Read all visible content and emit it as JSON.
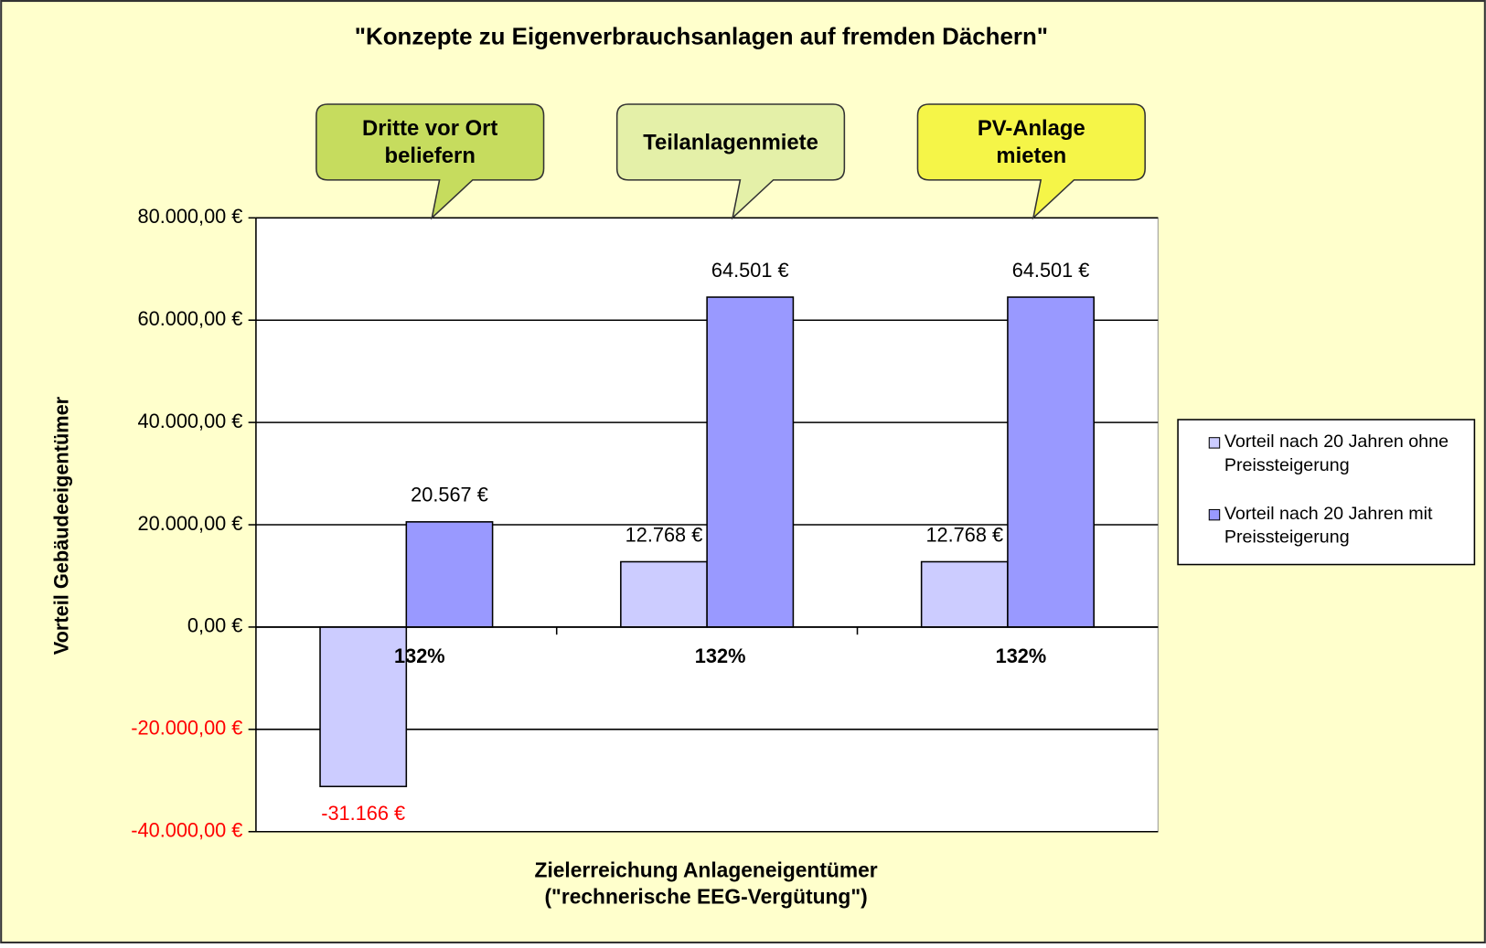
{
  "chart_data": {
    "type": "bar",
    "title": "\"Konzepte zu Eigenverbrauchsanlagen auf fremden Dächern\"",
    "y_label": "Vorteil Gebäudeeigentümer",
    "x_label": [
      "Zielerreichung Anlageneigentümer",
      "(\"rechnerische EEG-Vergütung\")"
    ],
    "categories": [
      "132%",
      "132%",
      "132%"
    ],
    "series": [
      {
        "name": "Vorteil nach 20 Jahren ohne Preissteigerung",
        "color": "#ccccff",
        "values": [
          -31166,
          12768,
          12768
        ],
        "value_labels": [
          "-31.166 €",
          "12.768 €",
          "12.768 €"
        ]
      },
      {
        "name": "Vorteil nach 20 Jahren mit Preissteigerung",
        "color": "#9999ff",
        "values": [
          20567,
          64501,
          64501
        ],
        "value_labels": [
          "20.567 €",
          "64.501 €",
          "64.501 €"
        ]
      }
    ],
    "ylim": [
      -40000,
      80000
    ],
    "yticks": [
      {
        "value": -40000,
        "label": "-40.000,00 €"
      },
      {
        "value": -20000,
        "label": "-20.000,00 €"
      },
      {
        "value": 0,
        "label": "0,00 €"
      },
      {
        "value": 20000,
        "label": "20.000,00 €"
      },
      {
        "value": 40000,
        "label": "40.000,00 €"
      },
      {
        "value": 60000,
        "label": "60.000,00 €"
      },
      {
        "value": 80000,
        "label": "80.000,00 €"
      }
    ],
    "grid": true,
    "negative_color": "#ff0000",
    "legend": "right",
    "annotations": [
      {
        "text": "Dritte vor Ort beliefern",
        "color": "#c6dc5e"
      },
      {
        "text": "Teilanlagenmiete",
        "color": "#e4f0a8"
      },
      {
        "text": "PV-Anlage mieten",
        "color": "#f5f548"
      }
    ]
  }
}
